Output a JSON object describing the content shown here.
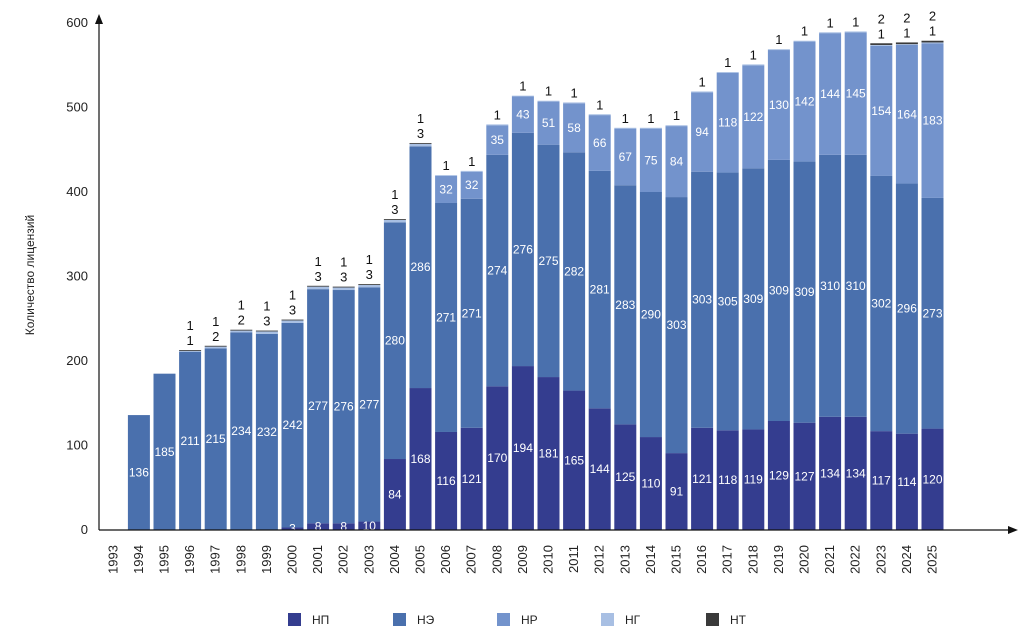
{
  "chart_data": {
    "type": "bar",
    "stacked": true,
    "title": "",
    "xlabel": "",
    "ylabel": "Количество лицензий",
    "ylim": [
      0,
      600
    ],
    "yticks": [
      0,
      100,
      200,
      300,
      400,
      500,
      600
    ],
    "categories": [
      "1993",
      "1994",
      "1995",
      "1996",
      "1997",
      "1998",
      "1999",
      "2000",
      "2001",
      "2002",
      "2003",
      "2004",
      "2005",
      "2006",
      "2007",
      "2008",
      "2009",
      "2010",
      "2011",
      "2012",
      "2013",
      "2014",
      "2015",
      "2016",
      "2017",
      "2018",
      "2019",
      "2020",
      "2021",
      "2022",
      "2023",
      "2024",
      "2025"
    ],
    "series": [
      {
        "name": "НП",
        "color": "#343d8f",
        "values": [
          0,
          0,
          0,
          0,
          0,
          0,
          0,
          3,
          8,
          8,
          10,
          84,
          168,
          116,
          121,
          170,
          194,
          181,
          165,
          144,
          125,
          110,
          91,
          121,
          118,
          119,
          129,
          127,
          134,
          134,
          117,
          114,
          120
        ]
      },
      {
        "name": "НЭ",
        "color": "#4a70ad",
        "values": [
          0,
          136,
          185,
          211,
          215,
          234,
          232,
          242,
          277,
          276,
          277,
          280,
          286,
          271,
          271,
          274,
          276,
          275,
          282,
          281,
          283,
          290,
          303,
          303,
          305,
          309,
          309,
          309,
          310,
          310,
          302,
          296,
          273
        ]
      },
      {
        "name": "НР",
        "color": "#7393cc",
        "values": [
          0,
          0,
          0,
          0,
          0,
          0,
          0,
          0,
          0,
          0,
          0,
          0,
          0,
          32,
          32,
          35,
          43,
          51,
          58,
          66,
          67,
          75,
          84,
          94,
          118,
          122,
          130,
          142,
          144,
          145,
          154,
          164,
          183
        ]
      },
      {
        "name": "НГ",
        "color": "#a8bfe3",
        "values": [
          0,
          0,
          0,
          1,
          2,
          2,
          3,
          3,
          3,
          3,
          3,
          3,
          3,
          1,
          1,
          1,
          1,
          1,
          1,
          1,
          1,
          1,
          1,
          1,
          1,
          1,
          1,
          1,
          1,
          1,
          1,
          1,
          1
        ]
      },
      {
        "name": "НТ",
        "color": "#3a3a3a",
        "values": [
          0,
          0,
          0,
          1,
          1,
          1,
          1,
          1,
          1,
          1,
          1,
          1,
          1,
          0,
          0,
          0,
          0,
          0,
          0,
          0,
          0,
          0,
          0,
          0,
          0,
          0,
          0,
          0,
          0,
          0,
          2,
          2,
          2
        ]
      }
    ],
    "legend_position": "bottom",
    "legend": [
      "НП",
      "НЭ",
      "НР",
      "НГ",
      "НТ"
    ]
  }
}
